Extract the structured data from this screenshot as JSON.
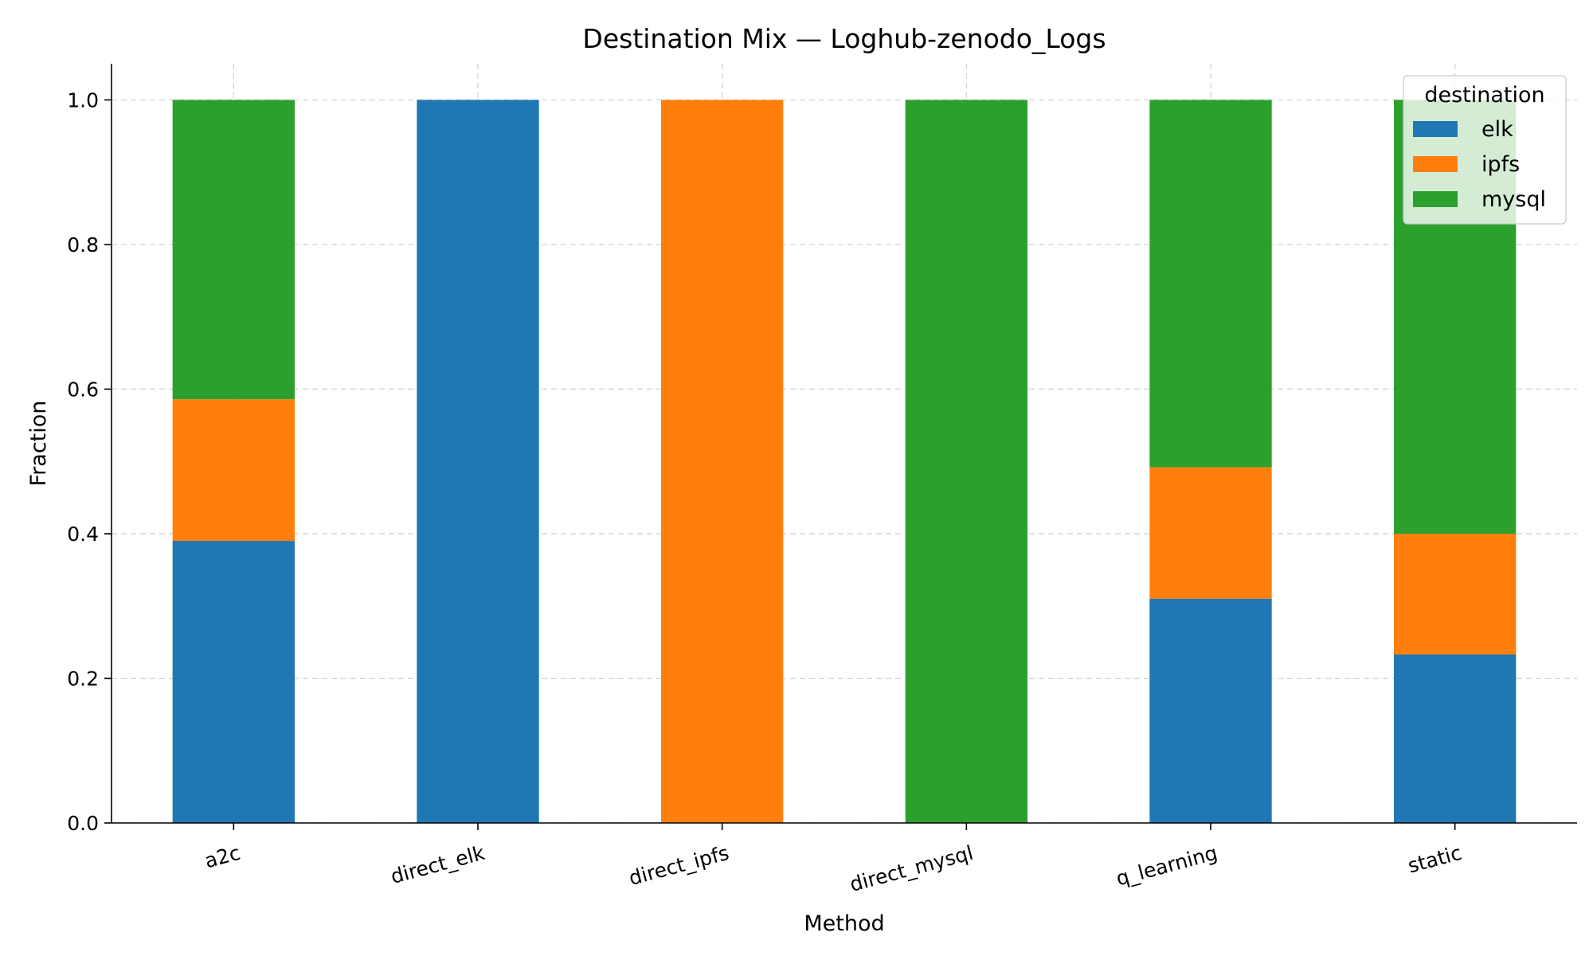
{
  "chart_data": {
    "type": "bar",
    "stacked": true,
    "title": "Destination Mix — Loghub-zenodo_Logs",
    "xlabel": "Method",
    "ylabel": "Fraction",
    "ylim": [
      0,
      1.05
    ],
    "yticks": [
      "0.0",
      "0.2",
      "0.4",
      "0.6",
      "0.8",
      "1.0"
    ],
    "grid": true,
    "legend": {
      "title": "destination",
      "position": "top-right"
    },
    "categories": [
      "a2c",
      "direct_elk",
      "direct_ipfs",
      "direct_mysql",
      "q_learning",
      "static"
    ],
    "series": [
      {
        "name": "elk",
        "color": "#1f77b4",
        "values": [
          0.39,
          1.0,
          0.0,
          0.0,
          0.31,
          0.233
        ]
      },
      {
        "name": "ipfs",
        "color": "#ff7f0e",
        "values": [
          0.196,
          0.0,
          1.0,
          0.0,
          0.182,
          0.167
        ]
      },
      {
        "name": "mysql",
        "color": "#2ca02c",
        "values": [
          0.414,
          0.0,
          0.0,
          1.0,
          0.508,
          0.6
        ]
      }
    ]
  }
}
